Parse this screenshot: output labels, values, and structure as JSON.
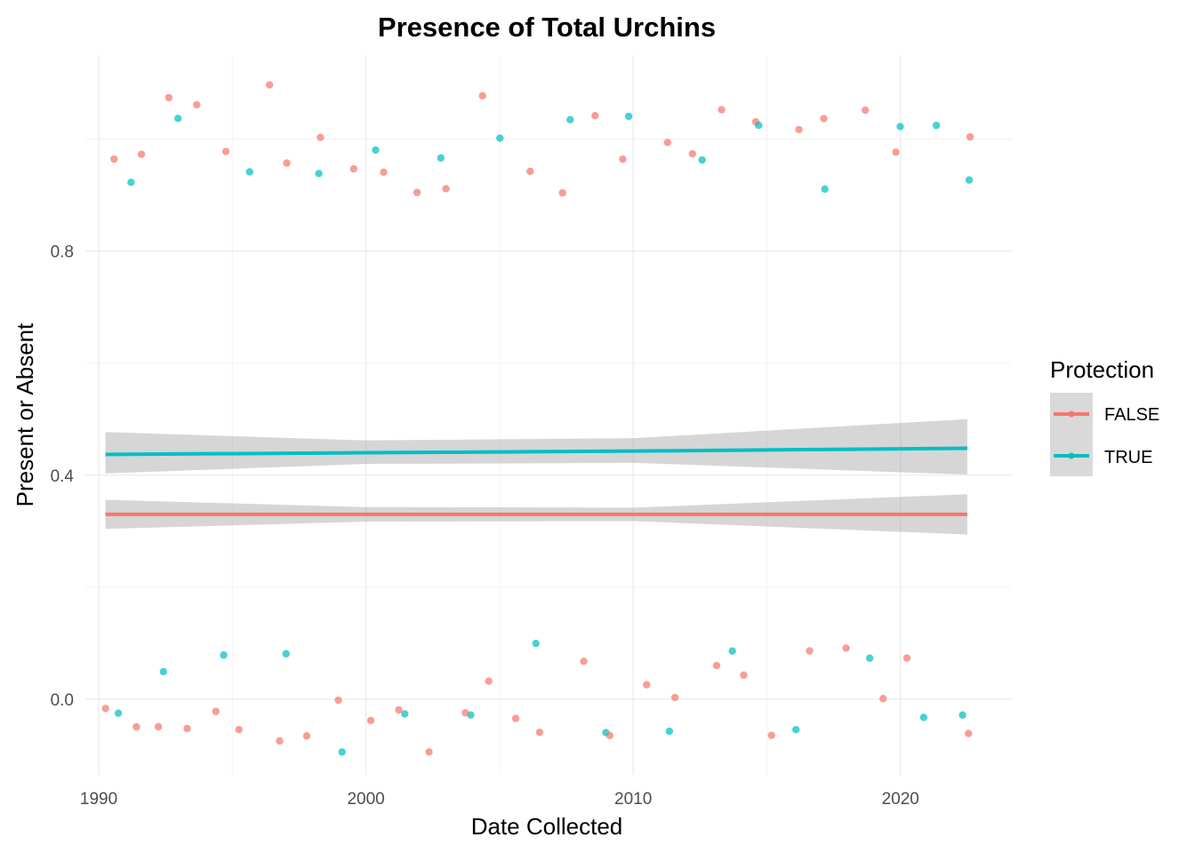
{
  "chart_data": {
    "type": "scatter",
    "title": "Presence of Total Urchins",
    "xlabel": "Date Collected",
    "ylabel": "Present or Absent",
    "xlim": [
      "1989-07-01",
      "2024-03-01"
    ],
    "ylim": [
      -0.135,
      1.15
    ],
    "x_ticks": [
      {
        "value": "1990-01-01",
        "label": "1990"
      },
      {
        "value": "2000-01-01",
        "label": "2000"
      },
      {
        "value": "2010-01-01",
        "label": "2010"
      },
      {
        "value": "2020-01-01",
        "label": "2020"
      }
    ],
    "y_ticks": [
      {
        "value": 0.0,
        "label": "0.0"
      },
      {
        "value": 0.4,
        "label": "0.4"
      },
      {
        "value": 0.8,
        "label": "0.8"
      }
    ],
    "grid": true,
    "jitter": 0.1,
    "legend": {
      "title": "Protection",
      "position": "right",
      "entries": [
        {
          "label": "FALSE",
          "color": "#F8766D"
        },
        {
          "label": "TRUE",
          "color": "#00BFC4"
        }
      ]
    },
    "series": [
      {
        "name": "FALSE",
        "color": "#F8766D",
        "trend": {
          "x": [
            "1990-04-01",
            "2000-01-01",
            "2010-01-01",
            "2022-07-01"
          ],
          "y": [
            0.33,
            0.33,
            0.33,
            0.33
          ],
          "ci_low": [
            0.304,
            0.317,
            0.318,
            0.294
          ],
          "ci_high": [
            0.356,
            0.343,
            0.342,
            0.366
          ]
        },
        "points": [
          {
            "x": "1990-06-01",
            "y": 0
          },
          {
            "x": "1990-10-01",
            "y": 1
          },
          {
            "x": "1991-03-01",
            "y": 0
          },
          {
            "x": "1991-07-01",
            "y": 1
          },
          {
            "x": "1992-02-01",
            "y": 0
          },
          {
            "x": "1992-08-01",
            "y": 1
          },
          {
            "x": "1993-04-01",
            "y": 0
          },
          {
            "x": "1993-09-01",
            "y": 1
          },
          {
            "x": "1994-05-01",
            "y": 0
          },
          {
            "x": "1994-10-01",
            "y": 1
          },
          {
            "x": "1995-06-01",
            "y": 0
          },
          {
            "x": "1996-03-01",
            "y": 1
          },
          {
            "x": "1996-08-01",
            "y": 0
          },
          {
            "x": "1997-04-01",
            "y": 1
          },
          {
            "x": "1997-09-01",
            "y": 0
          },
          {
            "x": "1998-05-01",
            "y": 1
          },
          {
            "x": "1998-11-01",
            "y": 0
          },
          {
            "x": "1999-07-01",
            "y": 1
          },
          {
            "x": "2000-02-01",
            "y": 0
          },
          {
            "x": "2000-09-01",
            "y": 1
          },
          {
            "x": "2001-05-01",
            "y": 0
          },
          {
            "x": "2001-11-01",
            "y": 1
          },
          {
            "x": "2002-06-01",
            "y": 0
          },
          {
            "x": "2003-01-01",
            "y": 1
          },
          {
            "x": "2003-08-01",
            "y": 0
          },
          {
            "x": "2004-03-01",
            "y": 1
          },
          {
            "x": "2004-10-01",
            "y": 0
          },
          {
            "x": "2005-06-01",
            "y": 0
          },
          {
            "x": "2006-02-01",
            "y": 1
          },
          {
            "x": "2006-09-01",
            "y": 0
          },
          {
            "x": "2007-05-01",
            "y": 1
          },
          {
            "x": "2007-12-01",
            "y": 0
          },
          {
            "x": "2008-07-01",
            "y": 1
          },
          {
            "x": "2009-03-01",
            "y": 0
          },
          {
            "x": "2009-10-01",
            "y": 1
          },
          {
            "x": "2010-06-01",
            "y": 0
          },
          {
            "x": "2011-02-01",
            "y": 1
          },
          {
            "x": "2011-09-01",
            "y": 0
          },
          {
            "x": "2012-05-01",
            "y": 1
          },
          {
            "x": "2012-12-01",
            "y": 0
          },
          {
            "x": "2013-07-01",
            "y": 1
          },
          {
            "x": "2014-03-01",
            "y": 0
          },
          {
            "x": "2014-10-01",
            "y": 1
          },
          {
            "x": "2015-06-01",
            "y": 0
          },
          {
            "x": "2016-02-01",
            "y": 1
          },
          {
            "x": "2016-09-01",
            "y": 0
          },
          {
            "x": "2017-05-01",
            "y": 1
          },
          {
            "x": "2017-12-01",
            "y": 0
          },
          {
            "x": "2018-07-01",
            "y": 1
          },
          {
            "x": "2019-03-01",
            "y": 0
          },
          {
            "x": "2019-09-01",
            "y": 1
          },
          {
            "x": "2020-01-01",
            "y": 0
          },
          {
            "x": "2022-06-01",
            "y": 1
          },
          {
            "x": "2022-06-01",
            "y": 0
          }
        ]
      },
      {
        "name": "TRUE",
        "color": "#00BFC4",
        "trend": {
          "x": [
            "1990-04-01",
            "2000-01-01",
            "2010-01-01",
            "2022-07-01"
          ],
          "y": [
            0.437,
            0.44,
            0.443,
            0.448
          ],
          "ci_low": [
            0.403,
            0.42,
            0.422,
            0.401
          ],
          "ci_high": [
            0.477,
            0.462,
            0.466,
            0.5
          ]
        },
        "points": [
          {
            "x": "1990-08-01",
            "y": 0
          },
          {
            "x": "1991-05-01",
            "y": 1
          },
          {
            "x": "1992-06-01",
            "y": 0
          },
          {
            "x": "1993-02-01",
            "y": 1
          },
          {
            "x": "1994-08-01",
            "y": 0
          },
          {
            "x": "1995-10-01",
            "y": 1
          },
          {
            "x": "1997-01-01",
            "y": 0
          },
          {
            "x": "1998-02-01",
            "y": 1
          },
          {
            "x": "1999-05-01",
            "y": 0
          },
          {
            "x": "2000-06-01",
            "y": 1
          },
          {
            "x": "2001-08-01",
            "y": 0
          },
          {
            "x": "2002-10-01",
            "y": 1
          },
          {
            "x": "2004-01-01",
            "y": 0
          },
          {
            "x": "2005-03-01",
            "y": 1
          },
          {
            "x": "2006-05-01",
            "y": 0
          },
          {
            "x": "2007-08-01",
            "y": 1
          },
          {
            "x": "2008-10-01",
            "y": 0
          },
          {
            "x": "2010-01-01",
            "y": 1
          },
          {
            "x": "2011-04-01",
            "y": 0
          },
          {
            "x": "2012-07-01",
            "y": 1
          },
          {
            "x": "2013-09-01",
            "y": 0
          },
          {
            "x": "2014-12-01",
            "y": 1
          },
          {
            "x": "2016-03-01",
            "y": 0
          },
          {
            "x": "2017-06-01",
            "y": 1
          },
          {
            "x": "2018-09-01",
            "y": 0
          },
          {
            "x": "2019-11-01",
            "y": 1
          },
          {
            "x": "2020-09-01",
            "y": 0
          },
          {
            "x": "2021-06-01",
            "y": 1
          },
          {
            "x": "2022-04-01",
            "y": 0
          },
          {
            "x": "2022-06-01",
            "y": 1
          }
        ]
      }
    ]
  }
}
